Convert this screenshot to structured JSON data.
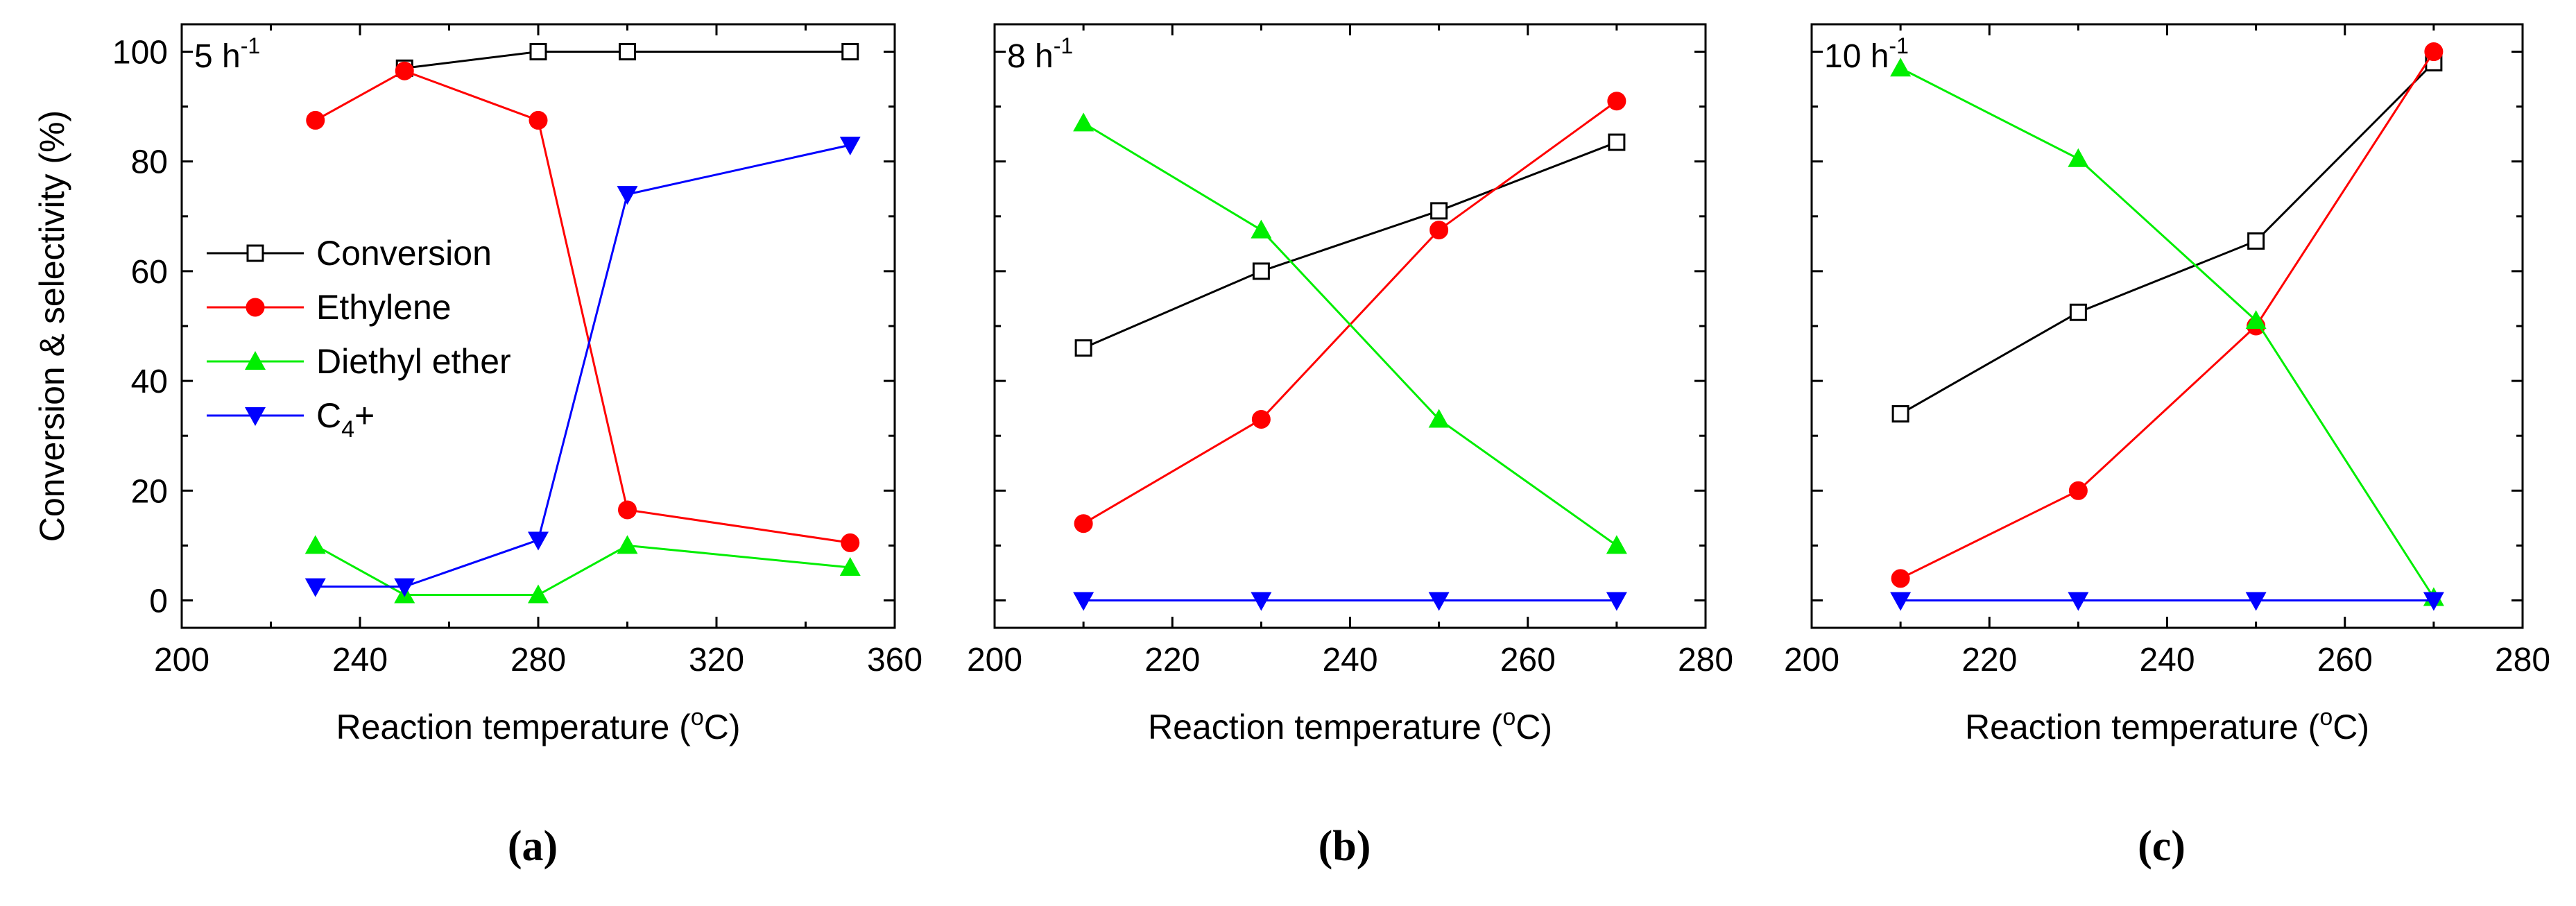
{
  "chart_data": [
    {
      "type": "line",
      "panel_label": "(a)",
      "title": "5 h",
      "title_sup": "-1",
      "xlabel_main": "Reaction temperature (",
      "xlabel_sup": "o",
      "xlabel_end": "C)",
      "ylabel": "Conversion & selectivity (%)",
      "xlim": [
        200,
        360
      ],
      "ylim": [
        -5,
        105
      ],
      "xticks": [
        200,
        240,
        280,
        320,
        360
      ],
      "yticks": [
        0,
        20,
        40,
        60,
        80,
        100
      ],
      "legend": "middle-left",
      "series": [
        {
          "name": "Conversion",
          "color": "#000000",
          "marker": "open-square",
          "x": [
            250,
            280,
            300,
            350
          ],
          "y": [
            97,
            100,
            100,
            100
          ]
        },
        {
          "name": "Ethylene",
          "color": "#ff0000",
          "marker": "circle",
          "x": [
            230,
            250,
            280,
            300,
            350
          ],
          "y": [
            87.5,
            96.5,
            87.5,
            16.5,
            10.5
          ]
        },
        {
          "name": "Diethyl ether",
          "color": "#00ee00",
          "marker": "triangle-up",
          "x": [
            230,
            250,
            280,
            300,
            350
          ],
          "y": [
            10,
            1,
            1,
            10,
            6
          ]
        },
        {
          "name": "C4+",
          "label_main": "C",
          "label_sub": "4",
          "label_end": "+",
          "color": "#0000ff",
          "marker": "triangle-down",
          "x": [
            230,
            250,
            280,
            300,
            350
          ],
          "y": [
            2.5,
            2.5,
            11,
            74,
            83
          ]
        }
      ]
    },
    {
      "type": "line",
      "panel_label": "(b)",
      "title": "8 h",
      "title_sup": "-1",
      "xlabel_main": "Reaction temperature (",
      "xlabel_sup": "o",
      "xlabel_end": "C)",
      "xlim": [
        200,
        280
      ],
      "ylim": [
        -5,
        105
      ],
      "xticks": [
        200,
        220,
        240,
        260,
        280
      ],
      "yticks": [
        0,
        20,
        40,
        60,
        80,
        100
      ],
      "series": [
        {
          "name": "Conversion",
          "color": "#000000",
          "marker": "open-square",
          "x": [
            210,
            230,
            250,
            270
          ],
          "y": [
            46,
            60,
            71,
            83.5
          ]
        },
        {
          "name": "Ethylene",
          "color": "#ff0000",
          "marker": "circle",
          "x": [
            210,
            230,
            250,
            270
          ],
          "y": [
            14,
            33,
            67.5,
            91
          ]
        },
        {
          "name": "Diethyl ether",
          "color": "#00ee00",
          "marker": "triangle-up",
          "x": [
            210,
            230,
            250,
            270
          ],
          "y": [
            87,
            67.5,
            33,
            10
          ]
        },
        {
          "name": "C4+",
          "color": "#0000ff",
          "marker": "triangle-down",
          "x": [
            210,
            230,
            250,
            270
          ],
          "y": [
            0,
            0,
            0,
            0
          ]
        }
      ]
    },
    {
      "type": "line",
      "panel_label": "(c)",
      "title": "10 h",
      "title_sup": "-1",
      "xlabel_main": "Reaction temperature (",
      "xlabel_sup": "o",
      "xlabel_end": "C)",
      "xlim": [
        200,
        280
      ],
      "ylim": [
        -5,
        105
      ],
      "xticks": [
        200,
        220,
        240,
        260,
        280
      ],
      "yticks": [
        0,
        20,
        40,
        60,
        80,
        100
      ],
      "series": [
        {
          "name": "Conversion",
          "color": "#000000",
          "marker": "open-square",
          "x": [
            210,
            230,
            250,
            270
          ],
          "y": [
            34,
            52.5,
            65.5,
            98
          ]
        },
        {
          "name": "Ethylene",
          "color": "#ff0000",
          "marker": "circle",
          "x": [
            210,
            230,
            250,
            270
          ],
          "y": [
            4,
            20,
            50,
            100
          ]
        },
        {
          "name": "Diethyl ether",
          "color": "#00ee00",
          "marker": "triangle-up",
          "x": [
            210,
            230,
            250,
            270
          ],
          "y": [
            97,
            80.5,
            51,
            0.5
          ]
        },
        {
          "name": "C4+",
          "color": "#0000ff",
          "marker": "triangle-down",
          "x": [
            210,
            230,
            250,
            270
          ],
          "y": [
            0,
            0,
            0,
            0
          ]
        }
      ]
    }
  ]
}
